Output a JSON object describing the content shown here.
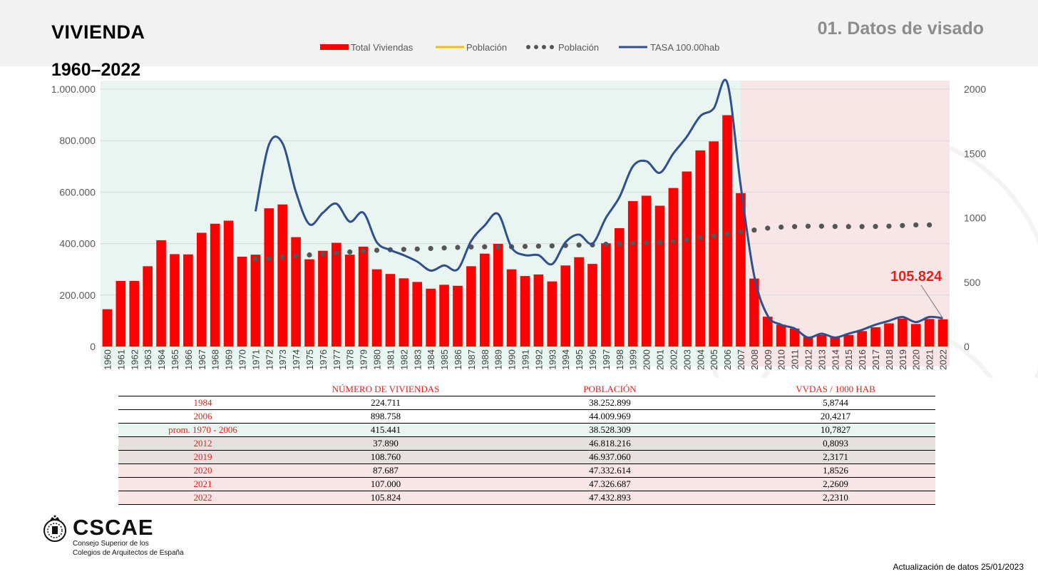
{
  "header": {
    "title": "VIVIENDA",
    "subtitle": "1960–2022",
    "section": "01. Datos de visado"
  },
  "colors": {
    "bars": "#ff0000",
    "tasa": "#2f4f8f",
    "poblacion_dots": "#555555",
    "poblacion_line": "#f5c000",
    "green_zone": "#e9f5f0",
    "red_zone": "#f8e6e6",
    "highlight": "#e8201c"
  },
  "chart_data": {
    "type": "bar",
    "legend": [
      "Total Viviendas",
      "Población",
      "Población",
      "TASA 100.00hab"
    ],
    "legend_position": "top",
    "grid": true,
    "ylim": [
      0,
      1000000
    ],
    "y2lim": [
      0,
      2000
    ],
    "yticks": [
      "1.000.000",
      "800.000",
      "600.000",
      "400.000",
      "200.000",
      "0"
    ],
    "y2ticks": [
      "2000",
      "1500",
      "1000",
      "500",
      "0"
    ],
    "annotation": "105.824",
    "categories": [
      "1960",
      "1961",
      "1962",
      "1963",
      "1964",
      "1965",
      "1966",
      "1967",
      "1968",
      "1969",
      "1970",
      "1971",
      "1972",
      "1973",
      "1974",
      "1975",
      "1976",
      "1977",
      "1978",
      "1979",
      "1980",
      "1981",
      "1982",
      "1983",
      "1984",
      "1985",
      "1986",
      "1987",
      "1988",
      "1989",
      "1990",
      "1991",
      "1992",
      "1993",
      "1994",
      "1995",
      "1996",
      "1997",
      "1998",
      "1999",
      "2000",
      "2001",
      "2002",
      "2003",
      "2004",
      "2005",
      "2006",
      "2007",
      "2008",
      "2009",
      "2010",
      "2011",
      "2012",
      "2013",
      "2014",
      "2015",
      "2016",
      "2017",
      "2018",
      "2019",
      "2020",
      "2021",
      "2022"
    ],
    "series": [
      {
        "name": "Total Viviendas",
        "axis": "left",
        "values": [
          145000,
          255000,
          255000,
          312000,
          413000,
          359000,
          358000,
          442000,
          477000,
          489000,
          349000,
          357000,
          537000,
          552000,
          425000,
          339000,
          372000,
          403000,
          357000,
          388000,
          300000,
          282000,
          265000,
          251000,
          224711,
          240000,
          236000,
          312000,
          361000,
          399000,
          300000,
          274000,
          280000,
          253000,
          315000,
          347000,
          321000,
          401000,
          460000,
          565000,
          586000,
          547000,
          616000,
          680000,
          762000,
          797000,
          898758,
          596000,
          264000,
          116000,
          85000,
          70000,
          37890,
          45000,
          35000,
          45000,
          60000,
          75000,
          90000,
          108760,
          87687,
          107000,
          105824
        ]
      },
      {
        "name": "Población",
        "axis": "right",
        "x": [
          "1971",
          "1972",
          "1973",
          "1974",
          "1975",
          "1976",
          "1977",
          "1978",
          "1979",
          "1980",
          "1981",
          "1982",
          "1983",
          "1984",
          "1985",
          "1986",
          "1987",
          "1988",
          "1989",
          "1990",
          "1991",
          "1992",
          "1993",
          "1994",
          "1995",
          "1996",
          "1997",
          "1998",
          "1999",
          "2000",
          "2001",
          "2002",
          "2003",
          "2004",
          "2005",
          "2006",
          "2007",
          "2008",
          "2009",
          "2010",
          "2011",
          "2012",
          "2013",
          "2014",
          "2015",
          "2016",
          "2017",
          "2018",
          "2019",
          "2020",
          "2021"
        ],
        "values": [
          680,
          684,
          695,
          705,
          712,
          720,
          728,
          735,
          742,
          748,
          752,
          755,
          758,
          762,
          766,
          770,
          774,
          775,
          775,
          775,
          778,
          780,
          782,
          785,
          788,
          790,
          795,
          798,
          803,
          805,
          810,
          818,
          830,
          845,
          860,
          875,
          890,
          905,
          920,
          928,
          932,
          935,
          935,
          933,
          932,
          932,
          933,
          935,
          940,
          945,
          945
        ]
      },
      {
        "name": "TASA 100.00hab",
        "axis": "right",
        "x": [
          "1971",
          "1972",
          "1973",
          "1974",
          "1975",
          "1976",
          "1977",
          "1978",
          "1979",
          "1980",
          "1981",
          "1982",
          "1983",
          "1984",
          "1985",
          "1986",
          "1987",
          "1988",
          "1989",
          "1990",
          "1991",
          "1992",
          "1993",
          "1994",
          "1995",
          "1996",
          "1997",
          "1998",
          "1999",
          "2000",
          "2001",
          "2002",
          "2003",
          "2004",
          "2005",
          "2006",
          "2007",
          "2008",
          "2009",
          "2010",
          "2011",
          "2012",
          "2013",
          "2014",
          "2015",
          "2016",
          "2017",
          "2018",
          "2019",
          "2020",
          "2021",
          "2022"
        ],
        "values": [
          1050,
          1570,
          1580,
          1200,
          950,
          1040,
          1110,
          970,
          1040,
          810,
          750,
          710,
          660,
          590,
          630,
          600,
          820,
          940,
          1030,
          770,
          710,
          710,
          640,
          810,
          870,
          800,
          1000,
          1160,
          1400,
          1440,
          1350,
          1500,
          1630,
          1790,
          1850,
          2050,
          1250,
          550,
          240,
          170,
          140,
          70,
          100,
          70,
          100,
          130,
          170,
          200,
          230,
          190,
          230,
          220
        ]
      }
    ]
  },
  "table": {
    "headers": [
      "",
      "NÚMERO DE VIVIENDAS",
      "POBLACIÓN",
      "VVDAS / 1000 HAB"
    ],
    "rows": [
      {
        "year": "1984",
        "viviendas": "224.711",
        "poblacion": "38.252.899",
        "tasa": "5,8744"
      },
      {
        "year": "2006",
        "viviendas": "898.758",
        "poblacion": "44.009.969",
        "tasa": "20,4217"
      },
      {
        "year": "prom. 1970 - 2006",
        "viviendas": "415.441",
        "poblacion": "38.528.309",
        "tasa": "10,7827"
      },
      {
        "year": "2012",
        "viviendas": "37.890",
        "poblacion": "46.818.216",
        "tasa": "0,8093"
      },
      {
        "year": "2019",
        "viviendas": "108.760",
        "poblacion": "46.937.060",
        "tasa": "2,3171"
      },
      {
        "year": "2020",
        "viviendas": "87.687",
        "poblacion": "47.332.614",
        "tasa": "1,8526"
      },
      {
        "year": "2021",
        "viviendas": "107.000",
        "poblacion": "47.326.687",
        "tasa": "2,2609"
      },
      {
        "year": "2022",
        "viviendas": "105.824",
        "poblacion": "47.432.893",
        "tasa": "2,2310"
      }
    ]
  },
  "footer": {
    "logo_word": "CSCAE",
    "logo_line1": "Consejo Superior de los",
    "logo_line2": "Colegios de Arquitectos de España",
    "update": "Actualización de datos 25/01/2023"
  }
}
